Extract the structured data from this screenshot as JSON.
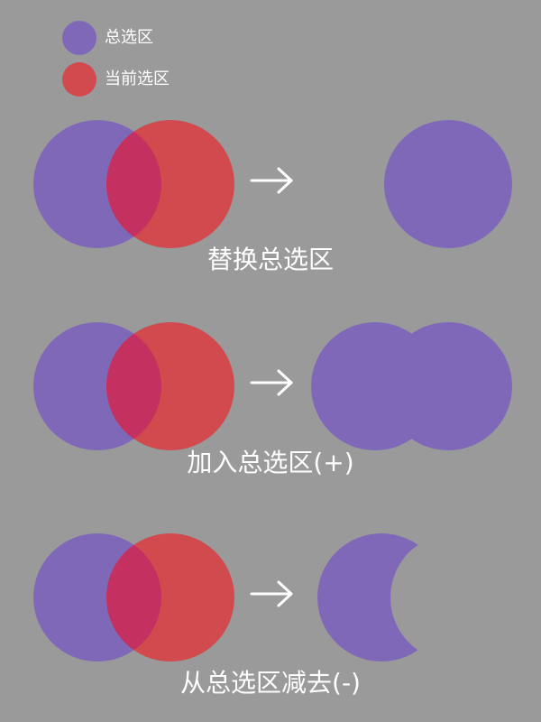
{
  "legend": {
    "total": {
      "label": "总选区",
      "color": "#8068b8"
    },
    "current": {
      "label": "当前选区",
      "color": "#d04a4e"
    }
  },
  "colors": {
    "background": "#9a9a9a",
    "overlap": "#c43060",
    "arrow": "#ffffff"
  },
  "rows": [
    {
      "caption": "替换总选区",
      "result": "replace-circle"
    },
    {
      "caption": "加入总选区(+)",
      "result": "union-two-circles"
    },
    {
      "caption": "从总选区减去(-)",
      "result": "subtract-crescent"
    }
  ]
}
